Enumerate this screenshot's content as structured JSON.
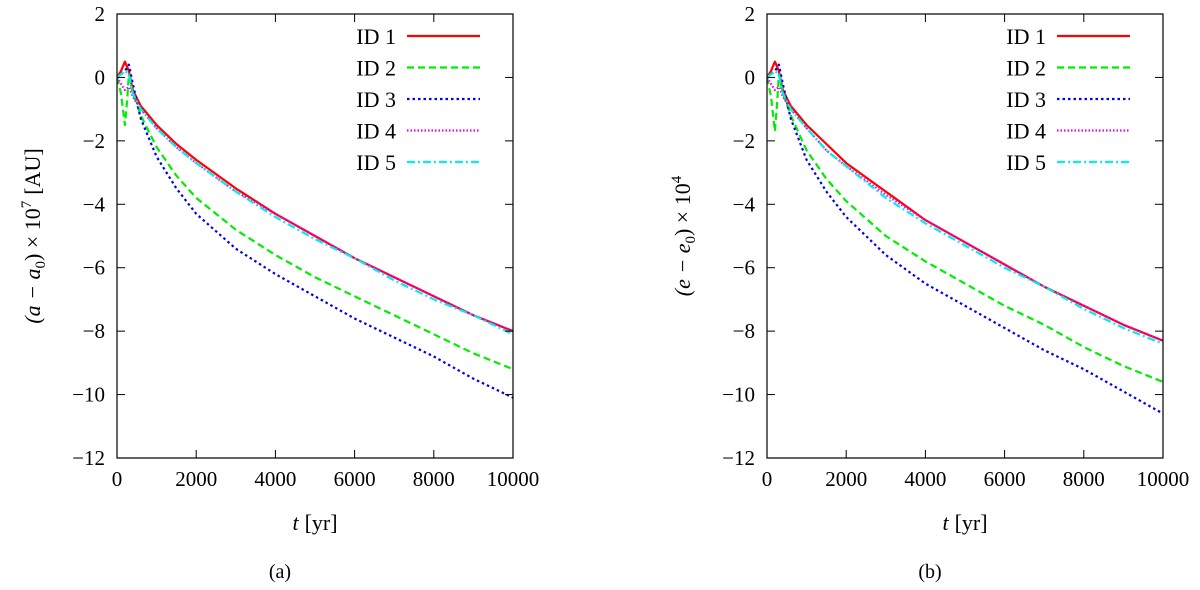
{
  "chart_data": [
    {
      "type": "line",
      "panel_label": "(a)",
      "xlabel_var": "t",
      "xlabel_unit": "[yr]",
      "ylabel_expr": "(a − a",
      "ylabel_sub": "0",
      "ylabel_times": ") × 10",
      "ylabel_sup": "7",
      "ylabel_unit": "[AU]",
      "xlim": [
        0,
        10000
      ],
      "ylim": [
        -12,
        2
      ],
      "xticks": [
        0,
        2000,
        4000,
        6000,
        8000,
        10000
      ],
      "xtick_labels": [
        "0",
        "2000",
        "4000",
        "6000",
        "8000",
        "10000"
      ],
      "yticks": [
        -12,
        -10,
        -8,
        -6,
        -4,
        -2,
        0,
        2
      ],
      "ytick_labels": [
        "−12",
        "−10",
        "−8",
        "−6",
        "−4",
        "−2",
        "0",
        "2"
      ],
      "grid": false,
      "legend": "top-right",
      "series": [
        {
          "name": "ID 1",
          "color": "#ff0000",
          "dash": "solid",
          "x": [
            0,
            100,
            200,
            300,
            400,
            600,
            1000,
            1500,
            2000,
            3000,
            4000,
            5000,
            6000,
            7000,
            8000,
            9000,
            10000
          ],
          "y": [
            0,
            0.2,
            0.5,
            0.2,
            -0.4,
            -0.9,
            -1.5,
            -2.1,
            -2.6,
            -3.5,
            -4.3,
            -5.0,
            -5.7,
            -6.3,
            -6.9,
            -7.5,
            -8.0
          ]
        },
        {
          "name": "ID 2",
          "color": "#00ee00",
          "dash": "dashed",
          "x": [
            0,
            100,
            200,
            250,
            300,
            400,
            600,
            1000,
            1500,
            2000,
            3000,
            4000,
            5000,
            6000,
            7000,
            8000,
            9000,
            10000
          ],
          "y": [
            0,
            -0.5,
            -1.5,
            -0.8,
            0.1,
            -0.5,
            -1.2,
            -2.2,
            -3.1,
            -3.8,
            -4.8,
            -5.6,
            -6.3,
            -6.9,
            -7.5,
            -8.1,
            -8.7,
            -9.2
          ]
        },
        {
          "name": "ID 3",
          "color": "#0000ee",
          "dash": "dotted",
          "x": [
            0,
            100,
            200,
            300,
            400,
            600,
            1000,
            1500,
            2000,
            3000,
            4000,
            5000,
            6000,
            7000,
            8000,
            9000,
            10000
          ],
          "y": [
            0,
            0.1,
            0.2,
            0.4,
            -0.2,
            -1.3,
            -2.5,
            -3.5,
            -4.3,
            -5.4,
            -6.2,
            -6.9,
            -7.6,
            -8.2,
            -8.8,
            -9.5,
            -10.1
          ]
        },
        {
          "name": "ID 4",
          "color": "#ee00ee",
          "dash": "dotted-fine",
          "x": [
            0,
            100,
            200,
            300,
            400,
            600,
            1000,
            1500,
            2000,
            3000,
            4000,
            5000,
            6000,
            7000,
            8000,
            9000,
            10000
          ],
          "y": [
            0,
            -0.2,
            -0.4,
            -0.3,
            -0.6,
            -1.0,
            -1.6,
            -2.2,
            -2.7,
            -3.6,
            -4.3,
            -5.0,
            -5.7,
            -6.3,
            -6.9,
            -7.5,
            -8.0
          ]
        },
        {
          "name": "ID 5",
          "color": "#00eeee",
          "dash": "dashdot",
          "x": [
            0,
            100,
            200,
            300,
            400,
            600,
            1000,
            1500,
            2000,
            3000,
            4000,
            5000,
            6000,
            7000,
            8000,
            9000,
            10000
          ],
          "y": [
            0,
            0.1,
            0.2,
            0.1,
            -0.5,
            -1.0,
            -1.6,
            -2.2,
            -2.7,
            -3.6,
            -4.4,
            -5.1,
            -5.7,
            -6.4,
            -7.0,
            -7.5,
            -8.1
          ]
        }
      ]
    },
    {
      "type": "line",
      "panel_label": "(b)",
      "xlabel_var": "t",
      "xlabel_unit": "[yr]",
      "ylabel_expr": "(e − e",
      "ylabel_sub": "0",
      "ylabel_times": ") × 10",
      "ylabel_sup": "4",
      "ylabel_unit": "",
      "xlim": [
        0,
        10000
      ],
      "ylim": [
        -12,
        2
      ],
      "xticks": [
        0,
        2000,
        4000,
        6000,
        8000,
        10000
      ],
      "xtick_labels": [
        "0",
        "2000",
        "4000",
        "6000",
        "8000",
        "10000"
      ],
      "yticks": [
        -12,
        -10,
        -8,
        -6,
        -4,
        -2,
        0,
        2
      ],
      "ytick_labels": [
        "−12",
        "−10",
        "−8",
        "−6",
        "−4",
        "−2",
        "0",
        "2"
      ],
      "grid": false,
      "legend": "top-right",
      "series": [
        {
          "name": "ID 1",
          "color": "#ff0000",
          "dash": "solid",
          "x": [
            0,
            100,
            200,
            300,
            400,
            600,
            1000,
            1500,
            2000,
            3000,
            4000,
            5000,
            6000,
            7000,
            8000,
            9000,
            10000
          ],
          "y": [
            0,
            0.2,
            0.5,
            0.2,
            -0.4,
            -0.9,
            -1.5,
            -2.1,
            -2.7,
            -3.6,
            -4.5,
            -5.2,
            -5.9,
            -6.6,
            -7.2,
            -7.8,
            -8.3
          ]
        },
        {
          "name": "ID 2",
          "color": "#00ee00",
          "dash": "dashed",
          "x": [
            0,
            100,
            200,
            250,
            300,
            400,
            600,
            1000,
            1500,
            2000,
            3000,
            4000,
            5000,
            6000,
            7000,
            8000,
            9000,
            10000
          ],
          "y": [
            0,
            -0.6,
            -1.7,
            -0.9,
            0.1,
            -0.5,
            -1.2,
            -2.3,
            -3.2,
            -3.9,
            -5.0,
            -5.8,
            -6.5,
            -7.2,
            -7.8,
            -8.5,
            -9.1,
            -9.6
          ]
        },
        {
          "name": "ID 3",
          "color": "#0000ee",
          "dash": "dotted",
          "x": [
            0,
            100,
            200,
            300,
            400,
            600,
            1000,
            1500,
            2000,
            3000,
            4000,
            5000,
            6000,
            7000,
            8000,
            9000,
            10000
          ],
          "y": [
            0,
            0.1,
            0.2,
            0.4,
            -0.2,
            -1.3,
            -2.6,
            -3.6,
            -4.4,
            -5.6,
            -6.5,
            -7.2,
            -7.9,
            -8.6,
            -9.2,
            -9.9,
            -10.6
          ]
        },
        {
          "name": "ID 4",
          "color": "#ee00ee",
          "dash": "dotted-fine",
          "x": [
            0,
            100,
            200,
            300,
            400,
            600,
            1000,
            1500,
            2000,
            3000,
            4000,
            5000,
            6000,
            7000,
            8000,
            9000,
            10000
          ],
          "y": [
            0,
            -0.2,
            -0.4,
            -0.3,
            -0.6,
            -1.0,
            -1.6,
            -2.3,
            -2.8,
            -3.7,
            -4.5,
            -5.2,
            -5.9,
            -6.6,
            -7.2,
            -7.8,
            -8.3
          ]
        },
        {
          "name": "ID 5",
          "color": "#00eeee",
          "dash": "dashdot",
          "x": [
            0,
            100,
            200,
            300,
            400,
            600,
            1000,
            1500,
            2000,
            3000,
            4000,
            5000,
            6000,
            7000,
            8000,
            9000,
            10000
          ],
          "y": [
            0,
            0.1,
            0.2,
            0.1,
            -0.5,
            -1.0,
            -1.6,
            -2.3,
            -2.8,
            -3.8,
            -4.6,
            -5.3,
            -6.0,
            -6.6,
            -7.3,
            -7.9,
            -8.4
          ]
        }
      ]
    }
  ]
}
